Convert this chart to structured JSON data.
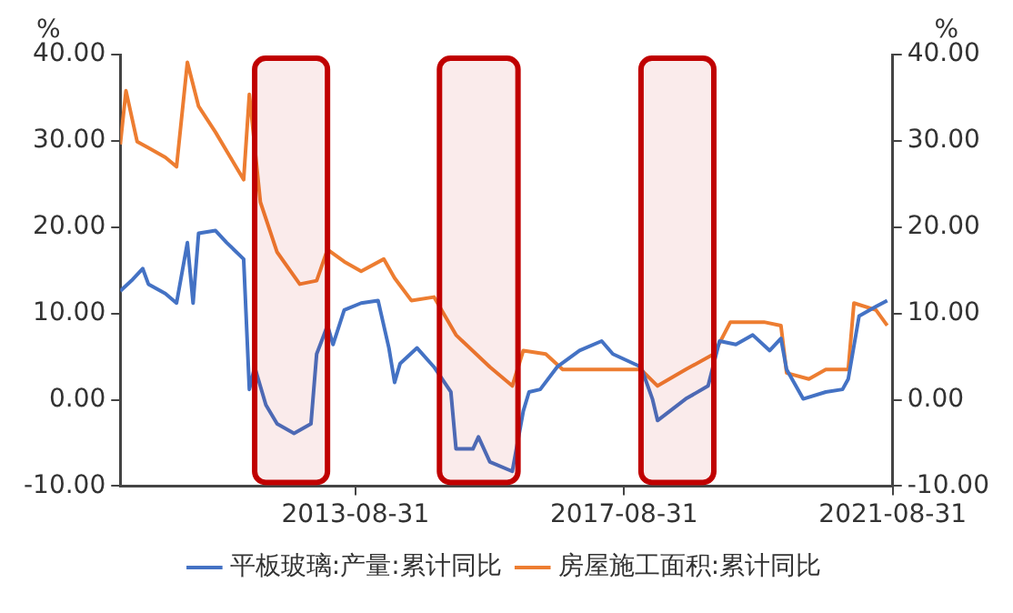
{
  "chart_data": {
    "type": "line",
    "xlabel": null,
    "ylabel": "%",
    "y2label": "%",
    "legend": "bottom",
    "grid": false,
    "marker": "none",
    "xlim": [
      "2010-03-01",
      "2021-08-31"
    ],
    "xticks": [
      "2013-08-31",
      "2017-08-31",
      "2021-08-31"
    ],
    "ylim": [
      -10,
      40
    ],
    "yticks": [
      {
        "value": -10,
        "label": "-10.00"
      },
      {
        "value": 0,
        "label": "0.00"
      },
      {
        "value": 10,
        "label": "10.00"
      },
      {
        "value": 20,
        "label": "20.00"
      },
      {
        "value": 30,
        "label": "30.00"
      },
      {
        "value": 40,
        "label": "40.00"
      }
    ],
    "y2lim": [
      -10,
      40
    ],
    "y2ticks": [
      {
        "value": -10,
        "label": "-10.00"
      },
      {
        "value": 0,
        "label": "0.00"
      },
      {
        "value": 10,
        "label": "10.00"
      },
      {
        "value": 20,
        "label": "20.00"
      },
      {
        "value": 30,
        "label": "30.00"
      },
      {
        "value": 40,
        "label": "40.00"
      }
    ],
    "bands": [
      {
        "axis": "x",
        "from": "2012-03",
        "to": "2013-04",
        "color": "#c00000"
      },
      {
        "axis": "x",
        "from": "2014-12",
        "to": "2016-02",
        "color": "#c00000"
      },
      {
        "axis": "x",
        "from": "2017-12",
        "to": "2019-01",
        "color": "#c00000"
      }
    ],
    "series": [
      {
        "name": "平板玻璃:产量:累计同比",
        "color": "#4472c4",
        "x": [
          "2010-03",
          "2010-05",
          "2010-07",
          "2010-08",
          "2010-11",
          "2011-01",
          "2011-03",
          "2011-04",
          "2011-05",
          "2011-08",
          "2011-10",
          "2012-01",
          "2012-02",
          "2012-03",
          "2012-05",
          "2012-07",
          "2012-10",
          "2013-01",
          "2013-02",
          "2013-04",
          "2013-05",
          "2013-07",
          "2013-10",
          "2014-01",
          "2014-03",
          "2014-04",
          "2014-05",
          "2014-08",
          "2014-11",
          "2015-02",
          "2015-03",
          "2015-06",
          "2015-07",
          "2015-09",
          "2016-01",
          "2016-03",
          "2016-04",
          "2016-06",
          "2016-09",
          "2017-01",
          "2017-05",
          "2017-07",
          "2017-12",
          "2018-02",
          "2018-03",
          "2018-08",
          "2018-12",
          "2019-02",
          "2019-05",
          "2019-08",
          "2019-11",
          "2020-01",
          "2020-02",
          "2020-05",
          "2020-09",
          "2020-12",
          "2021-01",
          "2021-03",
          "2021-06",
          "2021-08"
        ],
        "values": [
          12.6,
          13.8,
          15.2,
          13.4,
          12.3,
          11.2,
          18.2,
          11.2,
          19.3,
          19.6,
          18.2,
          16.3,
          1.2,
          3.8,
          -0.6,
          -2.8,
          -3.9,
          -2.8,
          5.3,
          8.6,
          6.4,
          10.4,
          11.2,
          11.5,
          6.0,
          2.0,
          4.2,
          6.0,
          3.8,
          0.9,
          -5.7,
          -5.7,
          -4.3,
          -7.2,
          -8.3,
          -1.3,
          0.9,
          1.2,
          3.8,
          5.7,
          6.8,
          5.3,
          3.8,
          0.1,
          -2.4,
          0.1,
          1.6,
          6.8,
          6.4,
          7.5,
          5.7,
          7.1,
          3.5,
          0.1,
          0.9,
          1.2,
          2.4,
          9.7,
          10.8,
          11.5
        ]
      },
      {
        "name": "房屋施工面积:累计同比",
        "color": "#ed7d31",
        "x": [
          "2010-03",
          "2010-04",
          "2010-06",
          "2010-08",
          "2010-11",
          "2011-01",
          "2011-03",
          "2011-05",
          "2011-08",
          "2011-11",
          "2012-01",
          "2012-02",
          "2012-04",
          "2012-07",
          "2012-11",
          "2013-02",
          "2013-04",
          "2013-07",
          "2013-10",
          "2014-02",
          "2014-04",
          "2014-07",
          "2014-11",
          "2015-03",
          "2015-09",
          "2016-01",
          "2016-03",
          "2016-07",
          "2016-10",
          "2017-05",
          "2017-12",
          "2018-03",
          "2018-08",
          "2019-01",
          "2019-04",
          "2019-10",
          "2020-01",
          "2020-02",
          "2020-06",
          "2020-09",
          "2021-01",
          "2021-02",
          "2021-06",
          "2021-08"
        ],
        "values": [
          29.6,
          35.8,
          29.9,
          29.2,
          28.1,
          27.0,
          39.1,
          34.0,
          31.0,
          27.7,
          25.5,
          35.4,
          22.9,
          17.1,
          13.4,
          13.8,
          17.4,
          16.0,
          14.9,
          16.3,
          14.1,
          11.5,
          11.9,
          7.5,
          3.8,
          1.6,
          5.7,
          5.3,
          3.5,
          3.5,
          3.5,
          1.6,
          3.5,
          5.3,
          9.0,
          9.0,
          8.6,
          3.1,
          2.4,
          3.5,
          3.5,
          11.2,
          10.4,
          8.6
        ]
      }
    ]
  }
}
